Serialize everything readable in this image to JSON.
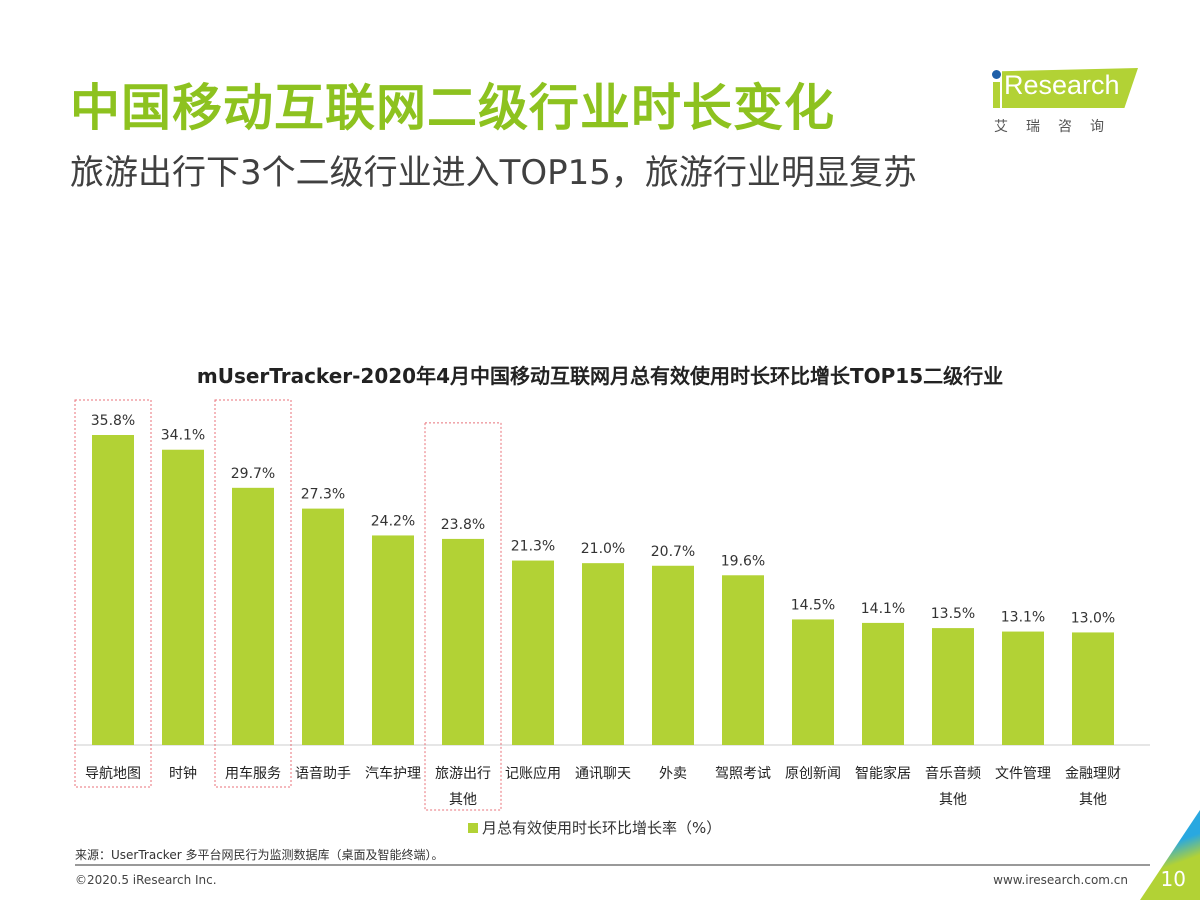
{
  "header": {
    "title": "中国移动互联网二级行业时长变化",
    "subtitle": "旅游出行下3个二级行业进入TOP15，旅游行业明显复苏"
  },
  "logo": {
    "text": "iResearch",
    "cn": "艾瑞咨询"
  },
  "chart_data": {
    "type": "bar",
    "title": "mUserTracker-2020年4月中国移动互联网月总有效使用时长环比增长TOP15二级行业",
    "categories": [
      "导航地图",
      "时钟",
      "用车服务",
      "语音助手",
      "汽车护理",
      "旅游出行其他",
      "记账应用",
      "通讯聊天",
      "外卖",
      "驾照考试",
      "原创新闻",
      "智能家居",
      "音乐音频其他",
      "文件管理",
      "金融理财其他"
    ],
    "category_lines": [
      [
        "导航地图"
      ],
      [
        "时钟"
      ],
      [
        "用车服务"
      ],
      [
        "语音助手"
      ],
      [
        "汽车护理"
      ],
      [
        "旅游出行",
        "其他"
      ],
      [
        "记账应用"
      ],
      [
        "通讯聊天"
      ],
      [
        "外卖"
      ],
      [
        "驾照考试"
      ],
      [
        "原创新闻"
      ],
      [
        "智能家居"
      ],
      [
        "音乐音频",
        "其他"
      ],
      [
        "文件管理"
      ],
      [
        "金融理财",
        "其他"
      ]
    ],
    "values": [
      35.8,
      34.1,
      29.7,
      27.3,
      24.2,
      23.8,
      21.3,
      21.0,
      20.7,
      19.6,
      14.5,
      14.1,
      13.5,
      13.1,
      13.0
    ],
    "data_labels": [
      "35.8%",
      "34.1%",
      "29.7%",
      "27.3%",
      "24.2%",
      "23.8%",
      "21.3%",
      "21.0%",
      "20.7%",
      "19.6%",
      "14.5%",
      "14.1%",
      "13.5%",
      "13.1%",
      "13.0%"
    ],
    "series": [
      {
        "name": "月总有效使用时长环比增长率（%）"
      }
    ],
    "highlighted": [
      "导航地图",
      "用车服务",
      "旅游出行其他"
    ],
    "ylim": [
      0,
      40
    ],
    "grid": false,
    "legend": "bottom",
    "colors": {
      "bar": "#b2d235",
      "highlight": "#e8727a"
    }
  },
  "footer": {
    "source": "来源：UserTracker 多平台网民行为监测数据库（桌面及智能终端）。",
    "copyright": "©2020.5 iResearch Inc.",
    "url": "www.iresearch.com.cn",
    "page": "10"
  }
}
